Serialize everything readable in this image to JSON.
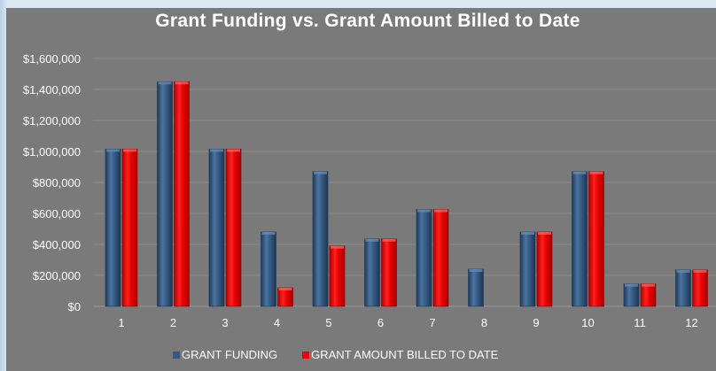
{
  "chart_data": {
    "type": "bar",
    "title": "Grant Funding vs. Grant Amount Billed to Date",
    "xlabel": "",
    "ylabel": "",
    "categories": [
      "1",
      "2",
      "3",
      "4",
      "5",
      "6",
      "7",
      "8",
      "9",
      "10",
      "11",
      "12"
    ],
    "series": [
      {
        "name": "GRANT FUNDING",
        "color": "#35587e",
        "values": [
          1015000,
          1450000,
          1015000,
          480000,
          870000,
          435000,
          625000,
          240000,
          480000,
          870000,
          145000,
          235000
        ]
      },
      {
        "name": "GRANT AMOUNT BILLED TO DATE",
        "color": "#ee0000",
        "values": [
          1015000,
          1450000,
          1015000,
          120000,
          390000,
          435000,
          625000,
          0,
          480000,
          870000,
          145000,
          235000
        ]
      }
    ],
    "ylim": [
      0,
      1600000
    ],
    "yticks": [
      "$0",
      "$200,000",
      "$400,000",
      "$600,000",
      "$800,000",
      "$1,000,000",
      "$1,200,000",
      "$1,400,000",
      "$1,600,000"
    ],
    "grid": true,
    "legend_position": "bottom"
  }
}
